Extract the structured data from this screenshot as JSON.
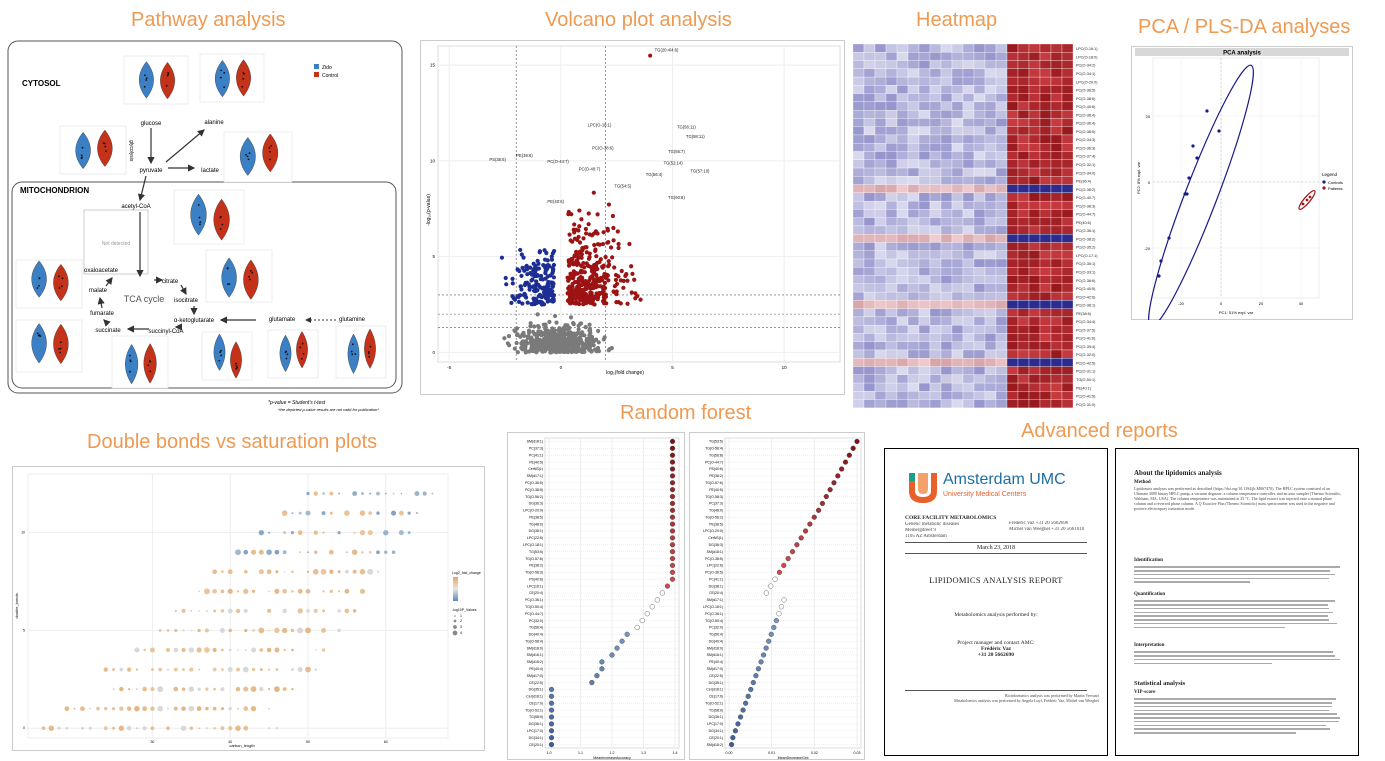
{
  "titles": {
    "pathway": "Pathway analysis",
    "volcano": "Volcano plot analysis",
    "heatmap": "Heatmap",
    "pca": "PCA / PLS-DA analyses",
    "bonds": "Double bonds vs saturation plots",
    "rf": "Random forest",
    "reports": "Advanced reports"
  },
  "pathway": {
    "cytosol": "CYTOSOL",
    "mitochondrion": "MITOCHONDRION",
    "legend": [
      "Zido",
      "Control"
    ],
    "not_detected": "Not detected",
    "metabolites": [
      "glucose",
      "alanine",
      "pyruvate",
      "lactate",
      "acetyl-CoA",
      "oxaloacetate",
      "citrate",
      "isocitrate",
      "malate",
      "TCA cycle",
      "fumarate",
      "α-ketoglutarate",
      "succinate",
      "succinyl-CoA",
      "glutamate",
      "glutamine"
    ],
    "glycolysis": "glycolysis",
    "footnote1": "*p-value = Student's t-test",
    "footnote2": "*the depicted p-value results are not valid for publication*"
  },
  "volcano": {
    "xlabel": "log₂(fold change)",
    "ylabel": "-log₁₀(p-value)",
    "xticks": [
      "-5",
      "0",
      "5",
      "10"
    ],
    "yticks": [
      "0",
      "5",
      "10",
      "15"
    ],
    "labels": [
      "TG(20:4/4:6)",
      "LPC(O-18:1)",
      "TG(56:11)",
      "PC(O-38:6)",
      "TG(58:11)",
      "TG(56:7)",
      "PC(O-44:7)",
      "PC(O-40:7)",
      "TG(56:4)",
      "TG(54:5)",
      "PE(40:6)",
      "PE(38:6)",
      "PS(38:6)",
      "TG(52:14)",
      "TG(57:10)",
      "TG(60:8)"
    ]
  },
  "heatmap": {
    "rows": [
      "LPC(O-16:1)",
      "LPC(O-18:0)",
      "PC(O-34:2)",
      "PC(O-34:1)",
      "LPC(O-20:0)",
      "PC(O-36:5)",
      "PC(O-38:6)",
      "PC(O-40:6)",
      "PC(O-38:4)",
      "PC(O-36:4)",
      "PC(O-38:5)",
      "PC(O-34:3)",
      "PC(O-36:3)",
      "PC(O-37:4)",
      "PC(O-32:1)",
      "PC(O-34:0)",
      "PE(36:4)",
      "PC(O-36:2)",
      "PC(O-40:7)",
      "PC(O-38:3)",
      "PC(O-44:7)",
      "PE(40:6)",
      "PC(O-36:1)",
      "PC(O-38:2)",
      "PC(O-35:2)",
      "LPC(O-17:1)",
      "PC(O-35:1)",
      "PC(O-33:1)",
      "PC(O-36:6)",
      "PC(O-40:5)",
      "PC(O-42:6)",
      "PC(O-38:1)",
      "PE(38:6)",
      "PC(O-34:4)",
      "PC(O-37:5)",
      "PC(O-41:6)",
      "PC(O-39:4)",
      "PC(O-32:0)",
      "PC(O-42:5)",
      "PC(O-31:1)",
      "TG(O-50:1)",
      "PE(40:1)",
      "PC(O-41:5)",
      "PC(O-31:0)"
    ]
  },
  "pca": {
    "title": "PCA analysis",
    "xlabel": "PC1: 51% expl. var",
    "ylabel": "PC2: 8% expl. var",
    "xticks": [
      "-20",
      "0",
      "20",
      "40"
    ],
    "yticks": [
      "20",
      "0",
      "-20"
    ],
    "legend_title": "Legend",
    "legend": [
      "Controls",
      "Patients"
    ]
  },
  "bonds": {
    "xlabel": "carbon_length",
    "ylabel": "double_bonds",
    "xticks": [
      "30",
      "40",
      "50",
      "60"
    ],
    "yticks": [
      "0",
      "5",
      "10"
    ],
    "legend1_title": "Log2_fold_change",
    "legend2_title": "-log10P_Values",
    "legend2_items": [
      "1",
      "2",
      "3",
      "4"
    ]
  },
  "rf": {
    "left_labels": [
      "SM(d18:1)",
      "PC(37:3)",
      "PC(41:1)",
      "PE(40:5)",
      "CerNS(1)",
      "SM(d17:1)",
      "PC(O-36:5)",
      "PC(O-38:5)",
      "TG(O-56:2)",
      "DG(36:3)",
      "LPC(O-20:0)",
      "PE(38:5)",
      "TG(48:0)",
      "DG(38:1)",
      "LPC(22:6)",
      "LPC(O-18:1)",
      "TG(53:5)",
      "TG(O-57:6)",
      "PE(38:2)",
      "TG(O-58:3)",
      "PS(40:6)",
      "LPC(16:1)",
      "CE(20:4)",
      "PC(O-36:1)",
      "TG(O-50:4)",
      "PC(O-44:7)",
      "PC(32:0)",
      "TG(56:4)",
      "DG(40:4)",
      "TG(O-58:4)",
      "SM(d18:0)",
      "SM(d16:1)",
      "SM(d18:2)",
      "PE(40:4)",
      "SM(d17:0)",
      "CE(22:5)",
      "DG(35:1)",
      "Cer(d18:1)",
      "CE(17:0)",
      "TG(O-52:1)",
      "TG(58:9)",
      "DG(36:1)",
      "LPC(17:0)",
      "DG(34:1)",
      "CE(20:1)"
    ],
    "right_labels": [
      "TG(53:5)",
      "TG(O-58:4)",
      "TG(56:8)",
      "PC(O-44:7)",
      "PS(40:6)",
      "PE(38:2)",
      "TG(O-57:6)",
      "PE(40:5)",
      "TG(O-58:3)",
      "PC(37:3)",
      "TG(48:0)",
      "TG(O-56:2)",
      "PE(38:5)",
      "LPC(O-20:0)",
      "CerNS(1)",
      "DG(36:3)",
      "SM(d18:1)",
      "PC(O-38:5)",
      "LPC(22:6)",
      "PC(O-36:5)",
      "PC(41:1)",
      "DG(38:1)",
      "CE(20:4)",
      "SM(d17:1)",
      "LPC(O-18:1)",
      "PC(O-36:1)",
      "TG(O-50:4)",
      "PC(32:0)",
      "TG(56:4)",
      "DG(40:4)",
      "SM(d18:0)",
      "SM(d16:1)",
      "PE(40:4)",
      "SM(d17:0)",
      "CE(22:5)",
      "DG(35:1)",
      "Cer(d18:1)",
      "CE(17:0)",
      "TG(O-52:1)",
      "TG(58:9)",
      "DG(36:1)",
      "LPC(17:0)",
      "DG(34:1)",
      "CE(20:1)",
      "SM(d18:2)"
    ],
    "left_xlabel": "MeanIncreaseAccuracy",
    "left_xticks": [
      "1.0",
      "1.1",
      "1.2",
      "1.3",
      "1.4"
    ],
    "right_xlabel": "MeanDecreaseGini",
    "right_xticks": [
      "0.00",
      "0.01",
      "0.02",
      "0.03"
    ]
  },
  "report1": {
    "logo_text": "Amsterdam UMC",
    "logo_sub": "University Medical Centers",
    "facility": "CORE FACILITY METABOLOMICS",
    "address": [
      "Genetic metabolic diseases",
      "Meibergdreef 9",
      "1105 AZ Amsterdam"
    ],
    "contact": [
      "Frédéric Vaz   +31 20 5662690",
      "Michel van Weeghel   +31 20 5661010"
    ],
    "date": "March 23, 2018",
    "title": "LIPIDOMICS ANALYSIS REPORT",
    "performed_by": "Metabolomics analysis performed by:",
    "manager": "Project manager and contact AMC:",
    "manager_name": "Frédéric Vaz",
    "manager_phone": "+31 20 5662690",
    "footer1": "Bioinformatics analysis was performed by Martin Vervaart",
    "footer2": "Metabolomics analysis was performed by Angela Luyf, Frédéric Vaz, Michel van Weeghel"
  },
  "report2": {
    "title": "About the lipidomics analysis",
    "sections": [
      "Method",
      "Identification",
      "Quantification",
      "Interpretation"
    ],
    "stats_title": "Statistical analysis",
    "vip": "VIP-score",
    "body": "Lipidomics analyses was performed as described (https://doi.org/10.1194/jlr.M067470). The HPLC system consisted of an Ultimate 3000 binary HPLC pump, a vacuum degasser, a column temperature controller, and an auto sampler (Thermo Scientific, Waltham, MA, USA). The column temperature was maintained at 25 °C. The lipid extract was injected onto a normal phase column and a reversed phase column. A Q Exactive Plus (Thermo Scientific) mass spectrometer was used in the negative and positive electrospray ionization mode."
  }
}
